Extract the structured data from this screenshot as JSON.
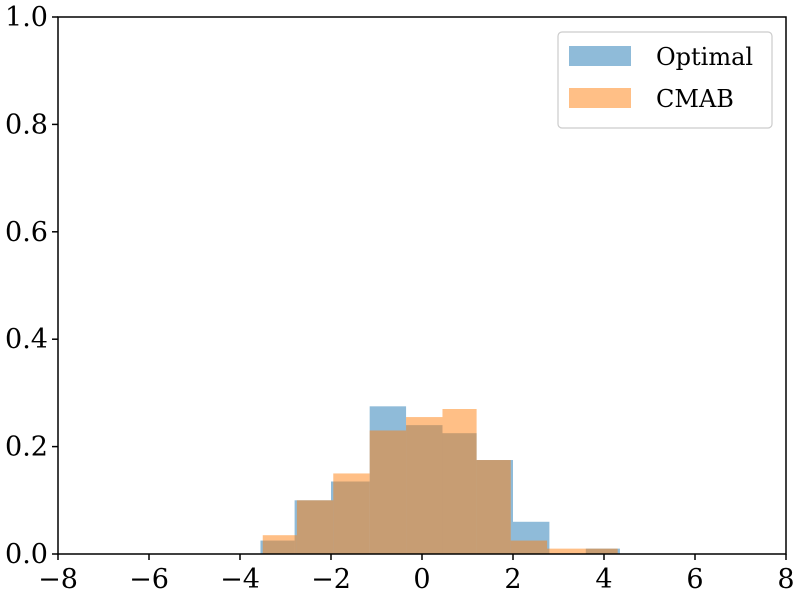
{
  "chart_data": {
    "type": "histogram",
    "title": "",
    "xlabel": "",
    "ylabel": "",
    "xlim": [
      -8,
      8
    ],
    "ylim": [
      0,
      1.0
    ],
    "xticks": [
      -8,
      -6,
      -4,
      -2,
      0,
      2,
      4,
      6,
      8
    ],
    "xtick_labels": [
      "−8",
      "−6",
      "−4",
      "−2",
      "0",
      "2",
      "4",
      "6",
      "8"
    ],
    "yticks": [
      0.0,
      0.2,
      0.4,
      0.6,
      0.8,
      1.0
    ],
    "ytick_labels": [
      "0.0",
      "0.2",
      "0.4",
      "0.6",
      "0.8",
      "1.0"
    ],
    "grid": false,
    "legend_position": "top-right",
    "series": [
      {
        "name": "Optimal",
        "color": "#1f77b4",
        "opacity": 0.5,
        "bin_edges": [
          -3.55,
          -2.8,
          -2.0,
          -1.15,
          -0.35,
          0.45,
          1.2,
          2.0,
          2.8,
          3.6,
          4.35
        ],
        "values": [
          0.025,
          0.1,
          0.135,
          0.275,
          0.24,
          0.225,
          0.175,
          0.06,
          0.0,
          0.01
        ]
      },
      {
        "name": "CMAB",
        "color": "#ff7f0e",
        "opacity": 0.5,
        "bin_edges": [
          -3.5,
          -2.75,
          -1.95,
          -1.15,
          -0.35,
          0.45,
          1.2,
          1.95,
          2.75,
          3.55,
          4.3
        ],
        "values": [
          0.035,
          0.1,
          0.15,
          0.23,
          0.255,
          0.27,
          0.175,
          0.025,
          0.01,
          0.01
        ]
      }
    ]
  }
}
